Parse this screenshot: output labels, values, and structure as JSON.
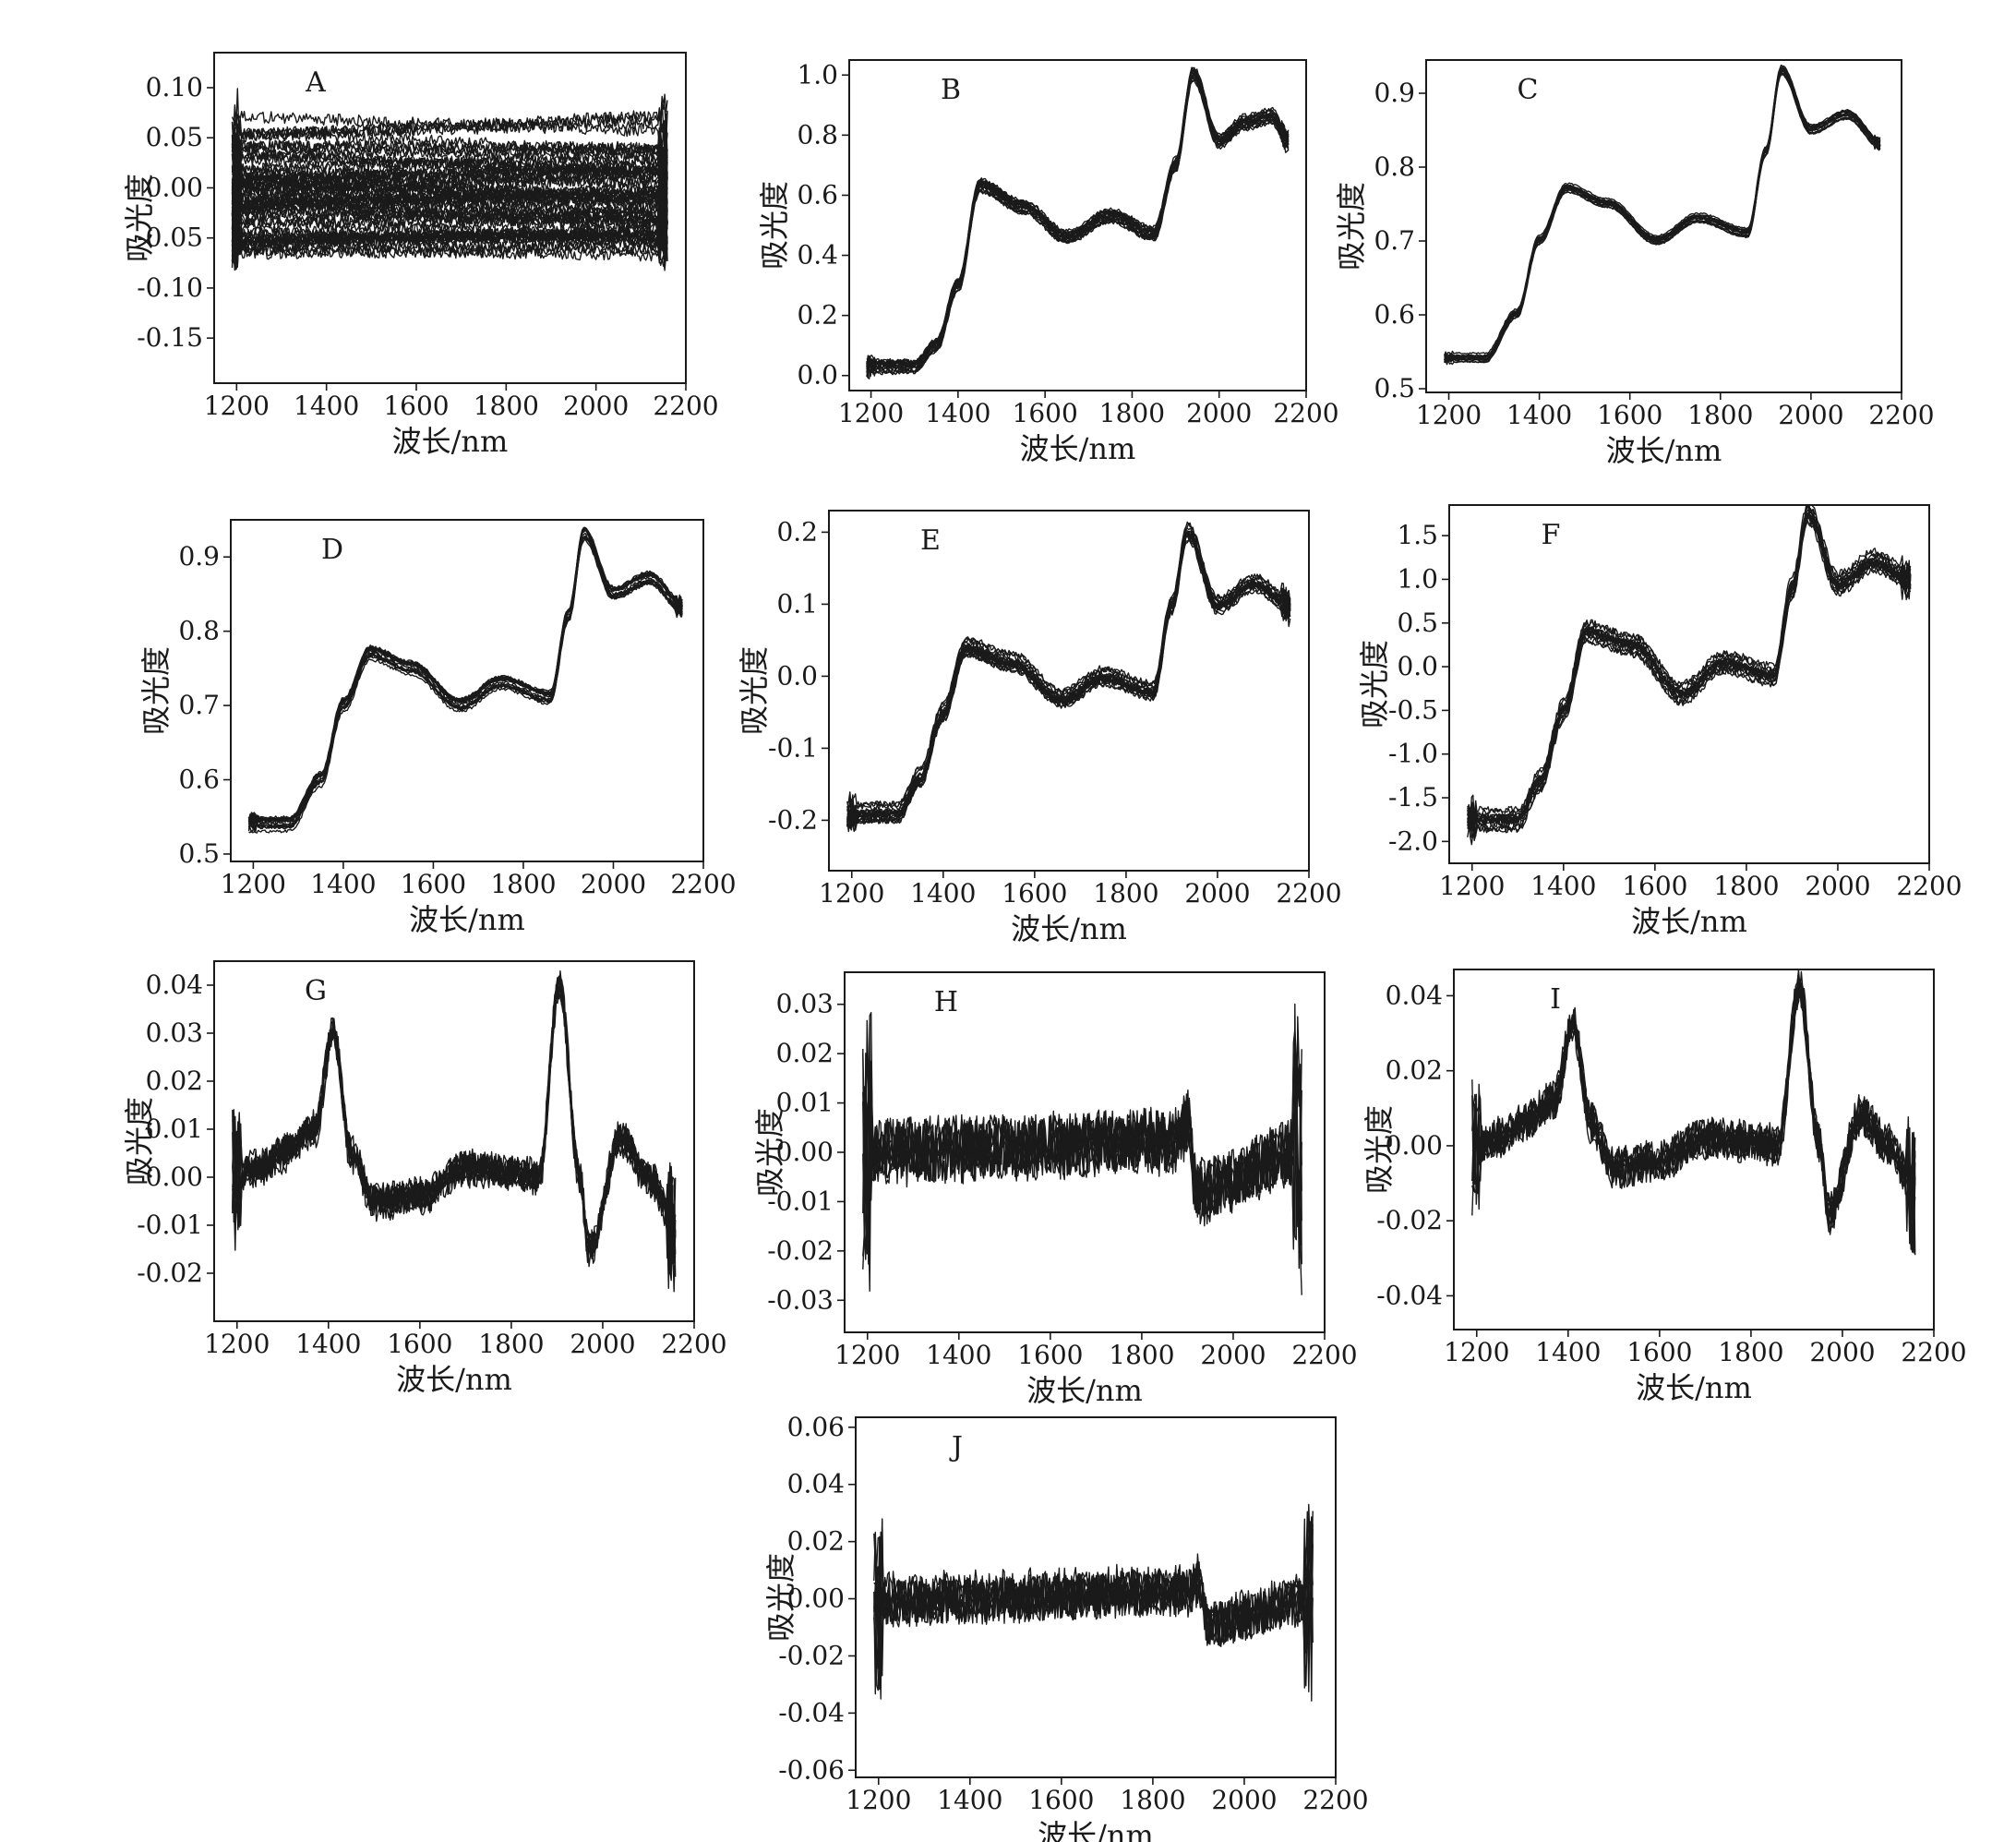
{
  "figure": {
    "background": "#ffffff",
    "ink_color": "#1a1a1a"
  },
  "chart_data": [
    {
      "type": "line",
      "letter": "A",
      "xlabel": "波长/nm",
      "ylabel": "吸光度",
      "xlim": [
        1150,
        2200
      ],
      "xticks": [
        1200,
        1400,
        1600,
        1800,
        2000,
        2200
      ],
      "xtick_labels": [
        "1200",
        "1400",
        "1600",
        "1800",
        "2000",
        "2200"
      ],
      "ylim": [
        -0.195,
        0.135
      ],
      "yticks": [
        0.1,
        0.05,
        0.0,
        -0.05,
        -0.1,
        -0.15
      ],
      "ytick_labels": [
        "0.10",
        "0.05",
        "0.00",
        "-0.05",
        "-0.10",
        "-0.15"
      ],
      "x_range": [
        1190,
        2160
      ],
      "series_count": 60,
      "envelope": {
        "x": [
          1190,
          1400,
          1600,
          1800,
          2000,
          2160
        ],
        "y": [
          0.0,
          0.0,
          0.0,
          0.0,
          0.0,
          0.0
        ]
      },
      "spread": 0.065,
      "noise": 0.006
    },
    {
      "type": "line",
      "letter": "B",
      "xlabel": "波长/nm",
      "ylabel": "吸光度",
      "xlim": [
        1150,
        2200
      ],
      "xticks": [
        1200,
        1400,
        1600,
        1800,
        2000,
        2200
      ],
      "xtick_labels": [
        "1200",
        "1400",
        "1600",
        "1800",
        "2000",
        "2200"
      ],
      "ylim": [
        -0.05,
        1.05
      ],
      "yticks": [
        1.0,
        0.8,
        0.6,
        0.4,
        0.2,
        0.0
      ],
      "ytick_labels": [
        "1.0",
        "0.8",
        "0.6",
        "0.4",
        "0.2",
        "0.0"
      ],
      "x_range": [
        1190,
        2160
      ],
      "series_count": 18,
      "envelope": {
        "x": [
          1190,
          1300,
          1350,
          1400,
          1450,
          1550,
          1650,
          1750,
          1850,
          1900,
          1940,
          2000,
          2060,
          2120,
          2160
        ],
        "y": [
          0.03,
          0.03,
          0.1,
          0.3,
          0.63,
          0.56,
          0.46,
          0.53,
          0.47,
          0.7,
          1.0,
          0.78,
          0.84,
          0.86,
          0.78
        ]
      },
      "spread": 0.025,
      "noise": 0.006
    },
    {
      "type": "line",
      "letter": "C",
      "xlabel": "波长/nm",
      "ylabel": "吸光度",
      "xlim": [
        1150,
        2200
      ],
      "xticks": [
        1200,
        1400,
        1600,
        1800,
        2000,
        2200
      ],
      "xtick_labels": [
        "1200",
        "1400",
        "1600",
        "1800",
        "2000",
        "2200"
      ],
      "ylim": [
        0.495,
        0.945
      ],
      "yticks": [
        0.9,
        0.8,
        0.7,
        0.6,
        0.5
      ],
      "ytick_labels": [
        "0.9",
        "0.8",
        "0.7",
        "0.6",
        "0.5"
      ],
      "x_range": [
        1190,
        2155
      ],
      "series_count": 14,
      "envelope": {
        "x": [
          1190,
          1280,
          1350,
          1400,
          1460,
          1550,
          1660,
          1750,
          1860,
          1900,
          1935,
          2000,
          2080,
          2155
        ],
        "y": [
          0.54,
          0.54,
          0.6,
          0.7,
          0.77,
          0.75,
          0.7,
          0.73,
          0.71,
          0.82,
          0.93,
          0.85,
          0.87,
          0.83
        ]
      },
      "spread": 0.008,
      "noise": 0.001
    },
    {
      "type": "line",
      "letter": "D",
      "xlabel": "波长/nm",
      "ylabel": "吸光度",
      "xlim": [
        1150,
        2200
      ],
      "xticks": [
        1200,
        1400,
        1600,
        1800,
        2000,
        2200
      ],
      "xtick_labels": [
        "1200",
        "1400",
        "1600",
        "1800",
        "2000",
        "2200"
      ],
      "ylim": [
        0.49,
        0.95
      ],
      "yticks": [
        0.9,
        0.8,
        0.7,
        0.6,
        0.5
      ],
      "ytick_labels": [
        "0.9",
        "0.8",
        "0.7",
        "0.6",
        "0.5"
      ],
      "x_range": [
        1190,
        2155
      ],
      "series_count": 18,
      "envelope": {
        "x": [
          1190,
          1280,
          1350,
          1400,
          1460,
          1550,
          1660,
          1750,
          1860,
          1900,
          1935,
          2000,
          2080,
          2155
        ],
        "y": [
          0.54,
          0.54,
          0.6,
          0.7,
          0.77,
          0.75,
          0.7,
          0.73,
          0.71,
          0.82,
          0.93,
          0.85,
          0.87,
          0.83
        ]
      },
      "spread": 0.009,
      "noise": 0.002
    },
    {
      "type": "line",
      "letter": "E",
      "xlabel": "波长/nm",
      "ylabel": "吸光度",
      "xlim": [
        1150,
        2200
      ],
      "xticks": [
        1200,
        1400,
        1600,
        1800,
        2000,
        2200
      ],
      "xtick_labels": [
        "1200",
        "1400",
        "1600",
        "1800",
        "2000",
        "2200"
      ],
      "ylim": [
        -0.27,
        0.23
      ],
      "yticks": [
        0.2,
        0.1,
        0.0,
        -0.1,
        -0.2
      ],
      "ytick_labels": [
        "0.2",
        "0.1",
        "0.0",
        "-0.1",
        "-0.2"
      ],
      "x_range": [
        1190,
        2160
      ],
      "series_count": 18,
      "envelope": {
        "x": [
          1190,
          1300,
          1350,
          1400,
          1450,
          1550,
          1660,
          1750,
          1860,
          1900,
          1935,
          2000,
          2080,
          2160
        ],
        "y": [
          -0.19,
          -0.19,
          -0.14,
          -0.05,
          0.04,
          0.02,
          -0.03,
          0.0,
          -0.02,
          0.1,
          0.2,
          0.1,
          0.13,
          0.1
        ]
      },
      "spread": 0.012,
      "noise": 0.004
    },
    {
      "type": "line",
      "letter": "F",
      "xlabel": "波长/nm",
      "ylabel": "吸光度",
      "xlim": [
        1150,
        2200
      ],
      "xticks": [
        1200,
        1400,
        1600,
        1800,
        2000,
        2200
      ],
      "xtick_labels": [
        "1200",
        "1400",
        "1600",
        "1800",
        "2000",
        "2200"
      ],
      "ylim": [
        -2.25,
        1.85
      ],
      "yticks": [
        1.5,
        1.0,
        0.5,
        0.0,
        -0.5,
        -1.0,
        -1.5,
        -2.0
      ],
      "ytick_labels": [
        "1.5",
        "1.0",
        "0.5",
        "0.0",
        "-0.5",
        "-1.0",
        "-1.5",
        "-2.0"
      ],
      "x_range": [
        1190,
        2160
      ],
      "series_count": 16,
      "envelope": {
        "x": [
          1190,
          1300,
          1350,
          1400,
          1450,
          1550,
          1660,
          1750,
          1860,
          1900,
          1935,
          2000,
          2080,
          2160
        ],
        "y": [
          -1.75,
          -1.75,
          -1.3,
          -0.5,
          0.4,
          0.25,
          -0.3,
          0.05,
          -0.1,
          0.9,
          1.75,
          0.95,
          1.2,
          1.0
        ]
      },
      "spread": 0.12,
      "noise": 0.04
    },
    {
      "type": "line",
      "letter": "G",
      "xlabel": "波长/nm",
      "ylabel": "吸光度",
      "xlim": [
        1150,
        2200
      ],
      "xticks": [
        1200,
        1400,
        1600,
        1800,
        2000,
        2200
      ],
      "xtick_labels": [
        "1200",
        "1400",
        "1600",
        "1800",
        "2000",
        "2200"
      ],
      "ylim": [
        -0.03,
        0.045
      ],
      "yticks": [
        0.04,
        0.03,
        0.02,
        0.01,
        0.0,
        -0.01,
        -0.02
      ],
      "ytick_labels": [
        "0.04",
        "0.03",
        "0.02",
        "0.01",
        "0.00",
        "-0.01",
        "-0.02"
      ],
      "x_range": [
        1190,
        2160
      ],
      "series_count": 10,
      "envelope": {
        "x": [
          1190,
          1250,
          1300,
          1370,
          1410,
          1450,
          1500,
          1600,
          1700,
          1800,
          1860,
          1905,
          1950,
          1970,
          2040,
          2100,
          2160
        ],
        "y": [
          0.0,
          0.002,
          0.005,
          0.01,
          0.03,
          0.005,
          -0.005,
          -0.004,
          0.002,
          0.001,
          0.0,
          0.04,
          0.0,
          -0.015,
          0.008,
          0.0,
          -0.01
        ]
      },
      "spread": 0.0015,
      "noise": 0.003
    },
    {
      "type": "line",
      "letter": "H",
      "xlabel": "波长/nm",
      "ylabel": "吸光度",
      "xlim": [
        1150,
        2200
      ],
      "xticks": [
        1200,
        1400,
        1600,
        1800,
        2000,
        2200
      ],
      "xtick_labels": [
        "1200",
        "1400",
        "1600",
        "1800",
        "2000",
        "2200"
      ],
      "ylim": [
        -0.0365,
        0.0365
      ],
      "yticks": [
        0.03,
        0.02,
        0.01,
        0.0,
        -0.01,
        -0.02,
        -0.03
      ],
      "ytick_labels": [
        "0.03",
        "0.02",
        "0.01",
        "0.00",
        "-0.01",
        "-0.02",
        "-0.03"
      ],
      "x_range": [
        1190,
        2150
      ],
      "series_count": 8,
      "envelope": {
        "x": [
          1190,
          1880,
          1900,
          1920,
          2150
        ],
        "y": [
          0.0,
          0.002,
          0.006,
          -0.008,
          0.0
        ]
      },
      "spread": 0.0015,
      "noise": 0.006
    },
    {
      "type": "line",
      "letter": "I",
      "xlabel": "波长/nm",
      "ylabel": "吸光度",
      "xlim": [
        1150,
        2200
      ],
      "xticks": [
        1200,
        1400,
        1600,
        1800,
        2000,
        2200
      ],
      "xtick_labels": [
        "1200",
        "1400",
        "1600",
        "1800",
        "2000",
        "2200"
      ],
      "ylim": [
        -0.049,
        0.047
      ],
      "yticks": [
        0.04,
        0.02,
        0.0,
        -0.02,
        -0.04
      ],
      "ytick_labels": [
        "0.04",
        "0.02",
        "0.00",
        "-0.02",
        "-0.04"
      ],
      "x_range": [
        1190,
        2160
      ],
      "series_count": 10,
      "envelope": {
        "x": [
          1190,
          1250,
          1300,
          1370,
          1410,
          1450,
          1500,
          1600,
          1700,
          1800,
          1860,
          1905,
          1950,
          1970,
          2040,
          2100,
          2160
        ],
        "y": [
          0.0,
          0.002,
          0.006,
          0.012,
          0.032,
          0.006,
          -0.006,
          -0.004,
          0.002,
          0.001,
          0.0,
          0.042,
          0.0,
          -0.018,
          0.008,
          0.0,
          -0.012
        ]
      },
      "spread": 0.002,
      "noise": 0.004
    },
    {
      "type": "line",
      "letter": "J",
      "xlabel": "波长/nm",
      "ylabel": "吸光度",
      "xlim": [
        1150,
        2200
      ],
      "xticks": [
        1200,
        1400,
        1600,
        1800,
        2000,
        2200
      ],
      "xtick_labels": [
        "1200",
        "1400",
        "1600",
        "1800",
        "2000",
        "2200"
      ],
      "ylim": [
        -0.0625,
        0.0635
      ],
      "yticks": [
        0.06,
        0.04,
        0.02,
        0.0,
        -0.02,
        -0.04,
        -0.06
      ],
      "ytick_labels": [
        "0.06",
        "0.04",
        "0.02",
        "0.00",
        "-0.02",
        "-0.04",
        "-0.06"
      ],
      "x_range": [
        1190,
        2150
      ],
      "series_count": 8,
      "envelope": {
        "x": [
          1190,
          1880,
          1900,
          1920,
          2150
        ],
        "y": [
          0.0,
          0.003,
          0.007,
          -0.008,
          0.0
        ]
      },
      "spread": 0.002,
      "noise": 0.008
    }
  ]
}
